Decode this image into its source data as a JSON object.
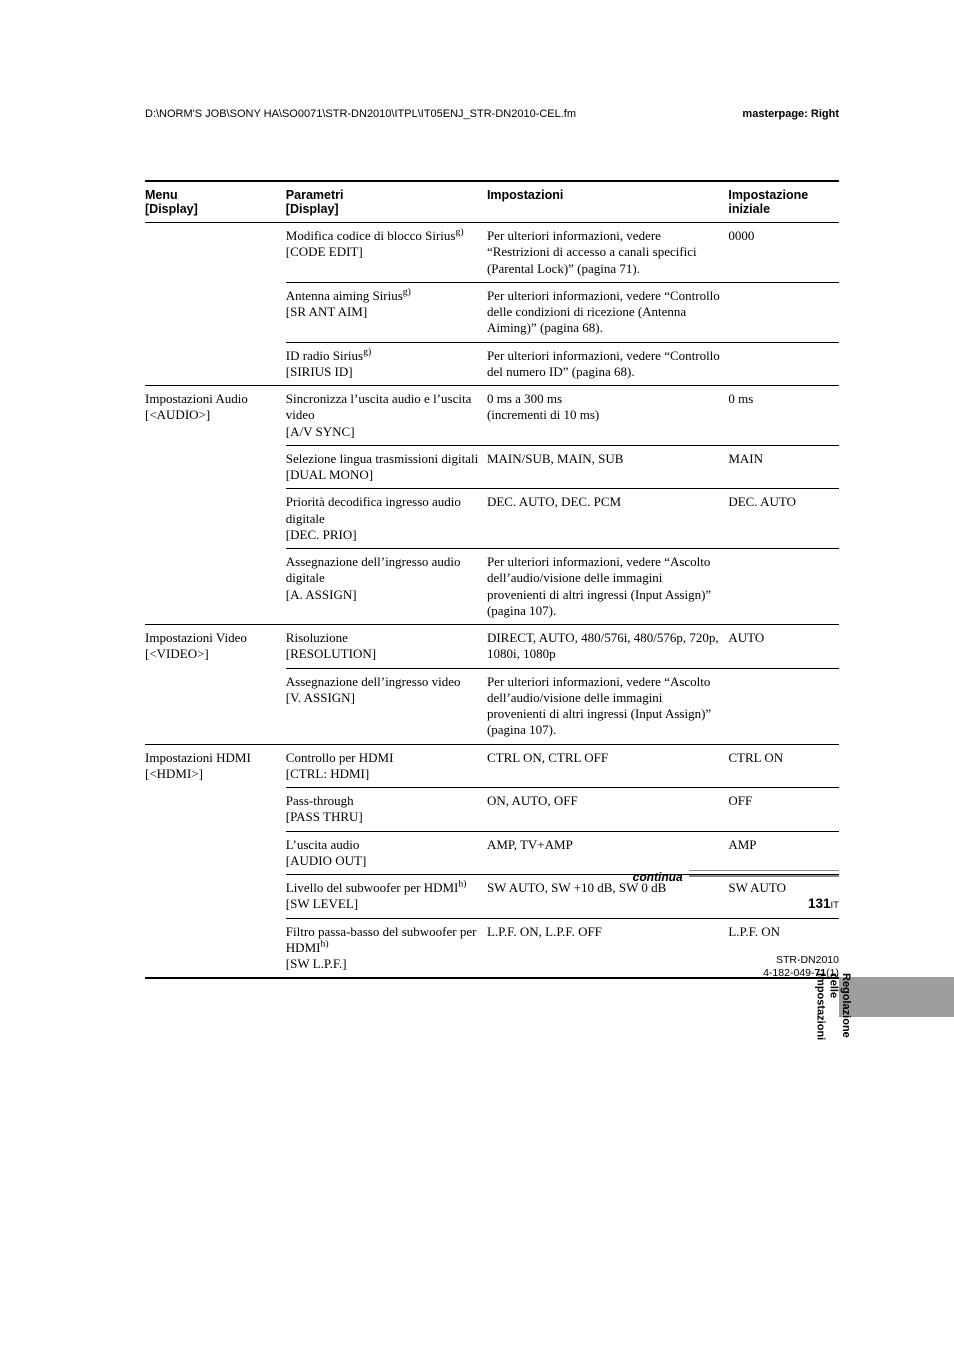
{
  "header": {
    "path": "D:\\NORM'S JOB\\SONY HA\\SO0071\\STR-DN2010\\ITPL\\IT05ENJ_STR-DN2010-CEL.fm",
    "masterpage": "masterpage: Right"
  },
  "columns": {
    "menu": "Menu\n[Display]",
    "param": "Parametri\n[Display]",
    "imp": "Impostazioni",
    "def": "Impostazione\niniziale"
  },
  "rows": [
    {
      "menu": "",
      "param_html": "Modifica codice di blocco Sirius<sup>g)</sup><br>[CODE EDIT]",
      "imp": "Per ulteriori informazioni, vedere “Restrizioni di accesso a canali specifici (Parental Lock)” (pagina 71).",
      "def": "0000",
      "newgroup": false
    },
    {
      "menu": "",
      "param_html": "Antenna aiming Sirius<sup>g)</sup><br>[SR ANT AIM]",
      "imp": "Per ulteriori informazioni, vedere “Controllo delle condizioni di ricezione (Antenna Aiming)” (pagina 68).",
      "def": "",
      "sep": true
    },
    {
      "menu": "",
      "param_html": "ID radio Sirius<sup>g)</sup><br>[SIRIUS ID]",
      "imp": "Per ulteriori informazioni, vedere “Controllo del numero ID” (pagina 68).",
      "def": "",
      "sep": true
    },
    {
      "menu": "Impostazioni Audio\n[<AUDIO>]",
      "param_html": "Sincronizza l’uscita audio e l’uscita video<br>[A/V SYNC]",
      "imp": "0 ms a 300 ms\n(incrementi di 10 ms)",
      "def": "0 ms",
      "newgroup": true
    },
    {
      "menu": "",
      "param_html": "Selezione lingua trasmissioni digitali<br>[DUAL MONO]",
      "imp": "MAIN/SUB, MAIN, SUB",
      "def": "MAIN",
      "sep": true
    },
    {
      "menu": "",
      "param_html": "Priorità decodifica ingresso audio digitale<br>[DEC. PRIO]",
      "imp": "DEC. AUTO, DEC. PCM",
      "def": "DEC. AUTO",
      "sep": true
    },
    {
      "menu": "",
      "param_html": "Assegnazione dell’ingresso audio digitale<br>[A. ASSIGN]",
      "imp": "Per ulteriori informazioni, vedere “Ascolto dell’audio/visione delle immagini provenienti di altri ingressi (Input Assign)” (pagina 107).",
      "def": "",
      "sep": true
    },
    {
      "menu": "Impostazioni Video\n[<VIDEO>]",
      "param_html": "Risoluzione<br>[RESOLUTION]",
      "imp": "DIRECT, AUTO, 480/576i, 480/576p, 720p, 1080i, 1080p",
      "def": "AUTO",
      "newgroup": true
    },
    {
      "menu": "",
      "param_html": "Assegnazione dell’ingresso video<br>[V. ASSIGN]",
      "imp": "Per ulteriori informazioni, vedere “Ascolto dell’audio/visione delle immagini provenienti di altri ingressi (Input Assign)” (pagina 107).",
      "def": "",
      "sep": true
    },
    {
      "menu": "Impostazioni HDMI\n[<HDMI>]",
      "param_html": "Controllo per HDMI<br>[CTRL: HDMI]",
      "imp": "CTRL ON, CTRL OFF",
      "def": "CTRL ON",
      "newgroup": true
    },
    {
      "menu": "",
      "param_html": "Pass-through<br>[PASS THRU]",
      "imp": "ON, AUTO, OFF",
      "def": "OFF",
      "sep": true
    },
    {
      "menu": "",
      "param_html": "L’uscita audio<br>[AUDIO OUT]",
      "imp": "AMP, TV+AMP",
      "def": "AMP",
      "sep": true
    },
    {
      "menu": "",
      "param_html": "Livello del subwoofer per HDMI<sup>h)</sup><br>[SW LEVEL]",
      "imp": "SW AUTO, SW +10 dB, SW 0 dB",
      "def": "SW AUTO",
      "sep": true
    },
    {
      "menu": "",
      "param_html": "Filtro passa-basso del subwoofer per HDMI<sup>h)</sup><br>[SW L.P.F.]",
      "imp": "L.P.F. ON, L.P.F. OFF",
      "def": "L.P.F. ON",
      "sep": true
    }
  ],
  "sideTab": {
    "line1": "Regolazione delle",
    "line2": "impostazioni"
  },
  "continua": "continua",
  "pageNumber": "131",
  "pageSuffix": "IT",
  "footer": {
    "model": "STR-DN2010",
    "part_prefix": "4-182-049-",
    "part_bold": "71",
    "part_suffix": "(1)"
  }
}
